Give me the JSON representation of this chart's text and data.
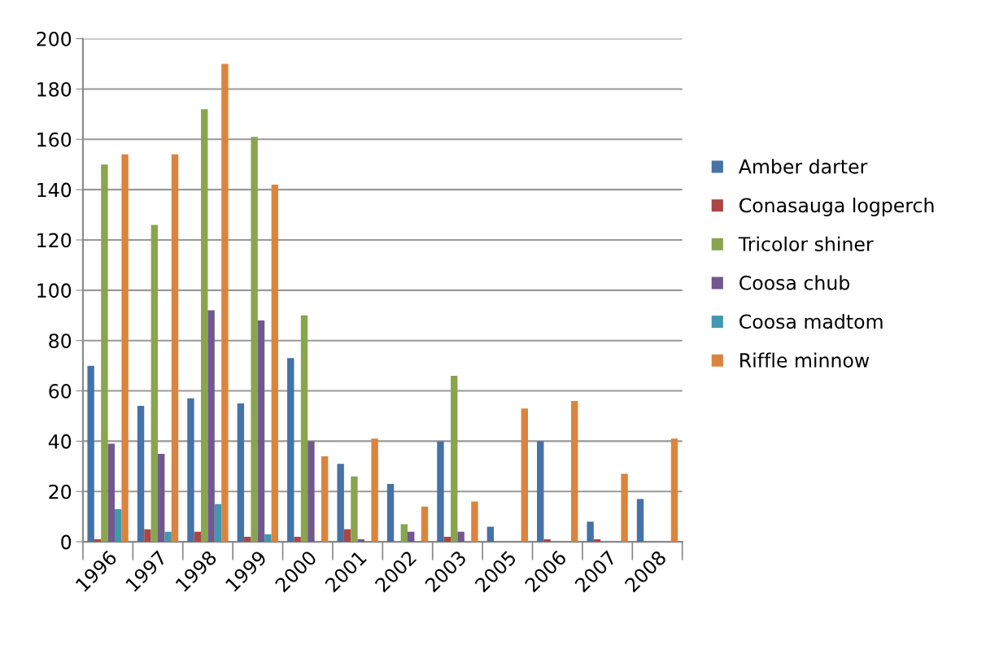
{
  "chart_data": {
    "type": "bar",
    "categories": [
      "1996",
      "1997",
      "1998",
      "1999",
      "2000",
      "2001",
      "2002",
      "2003",
      "2005",
      "2006",
      "2007",
      "2008"
    ],
    "series": [
      {
        "name": "Amber darter",
        "color": "#4572a7",
        "values": [
          70,
          54,
          57,
          55,
          73,
          31,
          23,
          40,
          6,
          40,
          8,
          17
        ]
      },
      {
        "name": "Conasauga logperch",
        "color": "#aa4643",
        "values": [
          1,
          5,
          4,
          2,
          2,
          5,
          0,
          2,
          0,
          1,
          1,
          0
        ]
      },
      {
        "name": "Tricolor shiner",
        "color": "#89a54e",
        "values": [
          150,
          126,
          172,
          161,
          90,
          26,
          7,
          66,
          0,
          0,
          0,
          0
        ]
      },
      {
        "name": "Coosa chub",
        "color": "#71588f",
        "values": [
          39,
          35,
          92,
          88,
          40,
          1,
          4,
          4,
          0,
          0,
          0,
          0
        ]
      },
      {
        "name": "Coosa madtom",
        "color": "#4198af",
        "values": [
          13,
          4,
          15,
          3,
          0,
          0,
          0,
          0,
          0,
          0,
          0,
          0
        ]
      },
      {
        "name": "Riffle minnow",
        "color": "#db843d",
        "values": [
          154,
          154,
          190,
          142,
          34,
          41,
          14,
          16,
          53,
          56,
          27,
          41
        ]
      }
    ],
    "ylim": [
      0,
      200
    ],
    "yticks": [
      0,
      20,
      40,
      60,
      80,
      100,
      120,
      140,
      160,
      180,
      200
    ],
    "grid": "y",
    "legend": "right"
  }
}
